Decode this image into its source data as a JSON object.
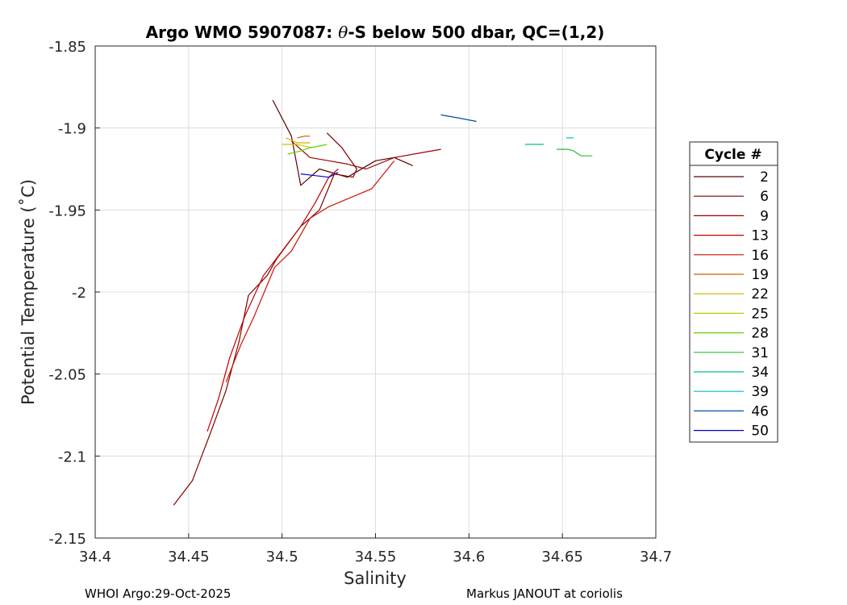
{
  "chart_data": {
    "type": "line",
    "title_prefix": "Argo WMO 5907087: ",
    "title_theta": "θ",
    "title_suffix": "-S below 500 dbar,  QC=(1,2)",
    "xlabel": "Salinity",
    "ylabel": "Potential Temperature (˚C)",
    "xlim": [
      34.4,
      34.7
    ],
    "ylim": [
      -2.15,
      -1.85
    ],
    "xticks": [
      34.4,
      34.45,
      34.5,
      34.55,
      34.6,
      34.65,
      34.7
    ],
    "xtick_labels": [
      "34.4",
      "34.45",
      "34.5",
      "34.55",
      "34.6",
      "34.65",
      "34.7"
    ],
    "yticks": [
      -1.85,
      -1.9,
      -1.95,
      -2.0,
      -2.05,
      -2.1,
      -2.15
    ],
    "ytick_labels": [
      "-1.85",
      "-1.9",
      "-1.95",
      "-2",
      "-2.05",
      "-2.1",
      "-2.15"
    ],
    "grid": true,
    "legend": {
      "title": "Cycle #",
      "placement": "right"
    },
    "series": [
      {
        "name": "2",
        "color": "#5a0000",
        "points": [
          [
            34.495,
            -1.883
          ],
          [
            34.505,
            -1.905
          ],
          [
            34.51,
            -1.935
          ],
          [
            34.52,
            -1.925
          ],
          [
            34.535,
            -1.93
          ],
          [
            34.55,
            -1.92
          ],
          [
            34.56,
            -1.918
          ],
          [
            34.57,
            -1.923
          ]
        ]
      },
      {
        "name": "6",
        "color": "#7f0000",
        "points": [
          [
            34.524,
            -1.903
          ],
          [
            34.532,
            -1.912
          ],
          [
            34.54,
            -1.925
          ],
          [
            34.538,
            -1.93
          ],
          [
            34.528,
            -1.928
          ],
          [
            34.52,
            -1.95
          ],
          [
            34.51,
            -1.96
          ],
          [
            34.497,
            -1.98
          ],
          [
            34.492,
            -1.99
          ],
          [
            34.482,
            -2.002
          ],
          [
            34.477,
            -2.03
          ],
          [
            34.47,
            -2.06
          ],
          [
            34.462,
            -2.085
          ],
          [
            34.452,
            -2.115
          ],
          [
            34.442,
            -2.13
          ]
        ]
      },
      {
        "name": "9",
        "color": "#a10000",
        "points": [
          [
            34.505,
            -1.908
          ],
          [
            34.515,
            -1.918
          ],
          [
            34.525,
            -1.92
          ],
          [
            34.535,
            -1.922
          ],
          [
            34.545,
            -1.925
          ],
          [
            34.56,
            -1.918
          ],
          [
            34.585,
            -1.913
          ]
        ]
      },
      {
        "name": "13",
        "color": "#c00000",
        "points": [
          [
            34.53,
            -1.925
          ],
          [
            34.525,
            -1.93
          ],
          [
            34.518,
            -1.945
          ],
          [
            34.51,
            -1.96
          ],
          [
            34.5,
            -1.975
          ],
          [
            34.49,
            -1.99
          ],
          [
            34.48,
            -2.015
          ],
          [
            34.472,
            -2.04
          ],
          [
            34.466,
            -2.065
          ],
          [
            34.46,
            -2.085
          ]
        ]
      },
      {
        "name": "16",
        "color": "#cc1100",
        "points": [
          [
            34.56,
            -1.92
          ],
          [
            34.548,
            -1.937
          ],
          [
            34.525,
            -1.948
          ],
          [
            34.515,
            -1.955
          ],
          [
            34.51,
            -1.965
          ],
          [
            34.505,
            -1.975
          ],
          [
            34.496,
            -1.985
          ],
          [
            34.485,
            -2.015
          ],
          [
            34.478,
            -2.032
          ],
          [
            34.47,
            -2.055
          ]
        ]
      },
      {
        "name": "19",
        "color": "#d06000",
        "points": [
          [
            34.508,
            -1.906
          ],
          [
            34.512,
            -1.905
          ],
          [
            34.515,
            -1.905
          ]
        ]
      },
      {
        "name": "22",
        "color": "#d0b000",
        "points": [
          [
            34.502,
            -1.906
          ],
          [
            34.508,
            -1.909
          ],
          [
            34.515,
            -1.909
          ]
        ]
      },
      {
        "name": "25",
        "color": "#b8d000",
        "points": [
          [
            34.5,
            -1.91
          ],
          [
            34.508,
            -1.91
          ],
          [
            34.516,
            -1.912
          ]
        ]
      },
      {
        "name": "28",
        "color": "#60d000",
        "points": [
          [
            34.503,
            -1.916
          ],
          [
            34.51,
            -1.914
          ],
          [
            34.515,
            -1.912
          ],
          [
            34.52,
            -1.911
          ],
          [
            34.524,
            -1.91
          ]
        ]
      },
      {
        "name": "31",
        "color": "#20c030",
        "points": [
          [
            34.647,
            -1.913
          ],
          [
            34.653,
            -1.913
          ],
          [
            34.656,
            -1.914
          ],
          [
            34.66,
            -1.917
          ],
          [
            34.666,
            -1.917
          ]
        ]
      },
      {
        "name": "34",
        "color": "#00c080",
        "points": [
          [
            34.63,
            -1.91
          ],
          [
            34.635,
            -1.91
          ],
          [
            34.64,
            -1.91
          ]
        ]
      },
      {
        "name": "39",
        "color": "#00b8c8",
        "points": [
          [
            34.652,
            -1.906
          ],
          [
            34.656,
            -1.906
          ]
        ]
      },
      {
        "name": "46",
        "color": "#0050a0",
        "points": [
          [
            34.585,
            -1.892
          ],
          [
            34.595,
            -1.894
          ],
          [
            34.604,
            -1.896
          ]
        ]
      },
      {
        "name": "50",
        "color": "#0000c8",
        "points": [
          [
            34.51,
            -1.928
          ],
          [
            34.525,
            -1.93
          ],
          [
            34.53,
            -1.927
          ]
        ]
      }
    ]
  },
  "footer": {
    "left": "WHOI Argo:29-Oct-2025",
    "right": "Markus JANOUT at coriolis"
  }
}
